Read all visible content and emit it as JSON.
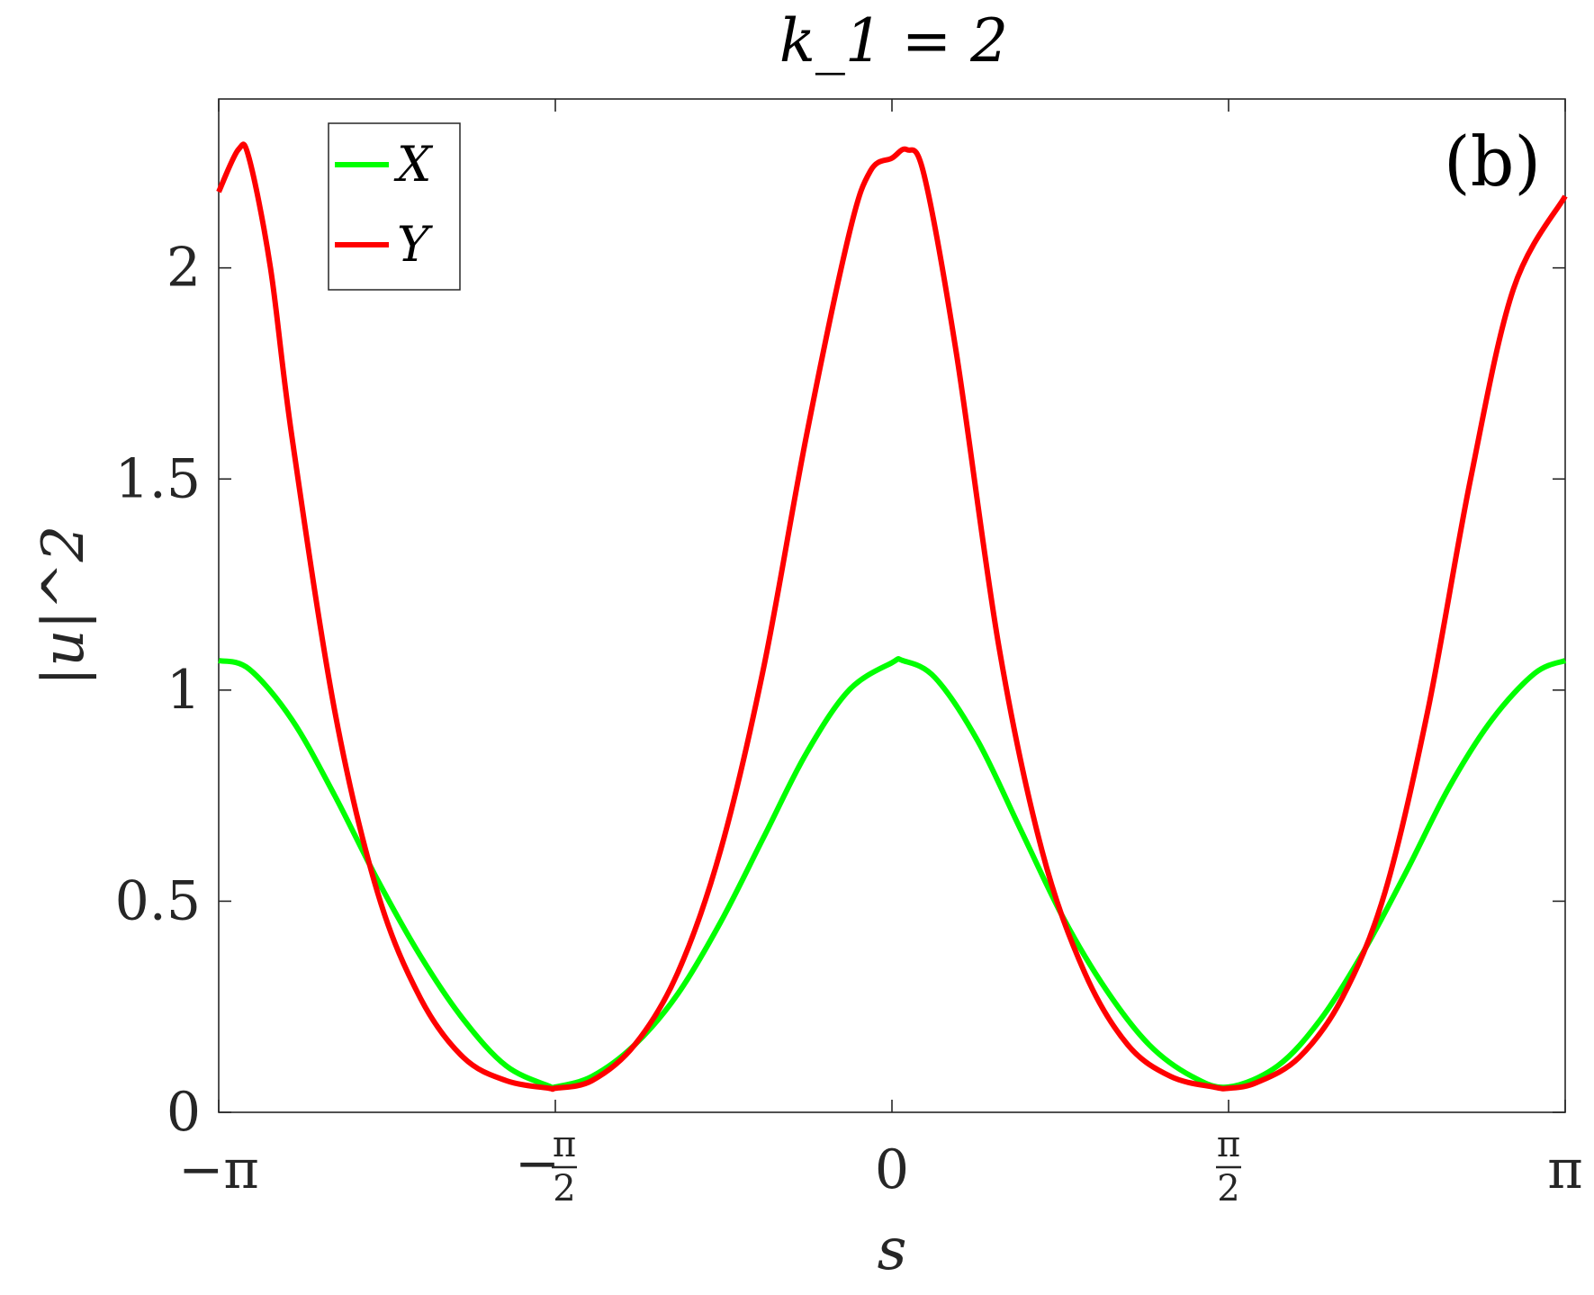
{
  "chart_data": {
    "type": "line",
    "title": "k_1 = 2",
    "panel_label": "(b)",
    "xlabel": "s",
    "ylabel": "|u|^2",
    "xlim": [
      -3.14159,
      3.14159
    ],
    "ylim": [
      0,
      2.4
    ],
    "x_ticks": [
      {
        "value": -3.14159,
        "label": "−π"
      },
      {
        "value": -1.5708,
        "label": "−",
        "num": "π",
        "den": "2"
      },
      {
        "value": 0,
        "label": "0"
      },
      {
        "value": 1.5708,
        "label": "",
        "num": "π",
        "den": "2"
      },
      {
        "value": 3.14159,
        "label": "π"
      }
    ],
    "y_ticks": [
      {
        "value": 0,
        "label": "0"
      },
      {
        "value": 0.5,
        "label": "0.5"
      },
      {
        "value": 1,
        "label": "1"
      },
      {
        "value": 1.5,
        "label": "1.5"
      },
      {
        "value": 2,
        "label": "2"
      }
    ],
    "grid": false,
    "legend_position": "top-left",
    "series": [
      {
        "name": "X",
        "color": "#00ff00",
        "x": [
          -3.1416,
          -3.0,
          -2.8,
          -2.6,
          -2.4,
          -2.2,
          -2.0,
          -1.8,
          -1.6,
          -1.5708,
          -1.4,
          -1.2,
          -1.0,
          -0.8,
          -0.6,
          -0.4,
          -0.2,
          0.0,
          0.05,
          0.2,
          0.4,
          0.6,
          0.8,
          1.0,
          1.2,
          1.4,
          1.5708,
          1.8,
          2.0,
          2.2,
          2.4,
          2.6,
          2.8,
          3.0,
          3.1416
        ],
        "y": [
          1.07,
          1.05,
          0.93,
          0.75,
          0.55,
          0.37,
          0.22,
          0.11,
          0.062,
          0.06,
          0.085,
          0.16,
          0.28,
          0.45,
          0.65,
          0.85,
          1.0,
          1.065,
          1.07,
          1.03,
          0.88,
          0.67,
          0.46,
          0.29,
          0.16,
          0.085,
          0.06,
          0.11,
          0.22,
          0.38,
          0.57,
          0.77,
          0.93,
          1.04,
          1.07
        ]
      },
      {
        "name": "Y",
        "color": "#ff0000",
        "x": [
          -3.1416,
          -3.05,
          -3.0,
          -2.9,
          -2.8,
          -2.6,
          -2.4,
          -2.2,
          -2.0,
          -1.8,
          -1.6,
          -1.5708,
          -1.4,
          -1.2,
          -1.0,
          -0.8,
          -0.6,
          -0.4,
          -0.2,
          -0.1,
          0.0,
          0.07,
          0.15,
          0.3,
          0.5,
          0.7,
          0.9,
          1.1,
          1.3,
          1.5,
          1.5708,
          1.7,
          1.9,
          2.1,
          2.3,
          2.5,
          2.7,
          2.9,
          3.1416
        ],
        "y": [
          2.18,
          2.28,
          2.26,
          2.0,
          1.6,
          0.95,
          0.52,
          0.27,
          0.13,
          0.075,
          0.057,
          0.057,
          0.075,
          0.16,
          0.33,
          0.62,
          1.05,
          1.6,
          2.08,
          2.23,
          2.26,
          2.28,
          2.22,
          1.8,
          1.1,
          0.62,
          0.33,
          0.16,
          0.085,
          0.06,
          0.057,
          0.07,
          0.13,
          0.27,
          0.52,
          0.95,
          1.5,
          1.95,
          2.17
        ]
      }
    ]
  }
}
